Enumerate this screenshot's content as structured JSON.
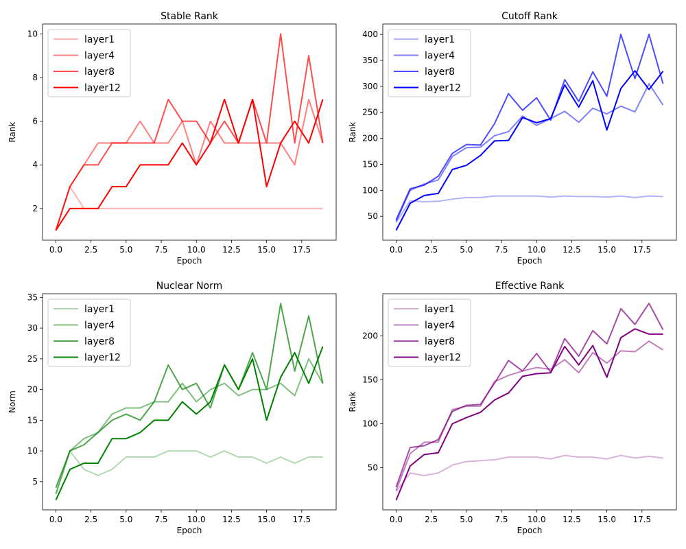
{
  "chart_data": [
    {
      "type": "line",
      "title": "Stable Rank",
      "xlabel": "Epoch",
      "ylabel": "Rank",
      "xlim": [
        -0.95,
        19.95
      ],
      "ylim": [
        0.55,
        10.45
      ],
      "xticks": [
        0.0,
        2.5,
        5.0,
        7.5,
        10.0,
        12.5,
        15.0,
        17.5
      ],
      "xtick_labels": [
        "0.0",
        "2.5",
        "5.0",
        "7.5",
        "10.0",
        "12.5",
        "15.0",
        "17.5"
      ],
      "yticks": [
        2,
        4,
        6,
        8,
        10
      ],
      "ytick_labels": [
        "2",
        "4",
        "6",
        "8",
        "10"
      ],
      "legend_position": "top-left",
      "x": [
        0,
        1,
        2,
        3,
        4,
        5,
        6,
        7,
        8,
        9,
        10,
        11,
        12,
        13,
        14,
        15,
        16,
        17,
        18,
        19
      ],
      "series": [
        {
          "name": "layer1",
          "color": "#ff0000",
          "opacity": 0.3,
          "values": [
            1,
            3,
            2,
            2,
            2,
            2,
            2,
            2,
            2,
            2,
            2,
            2,
            2,
            2,
            2,
            2,
            2,
            2,
            2,
            2
          ]
        },
        {
          "name": "layer4",
          "color": "#ff0000",
          "opacity": 0.5,
          "values": [
            1,
            3,
            4,
            5,
            5,
            5,
            6,
            5,
            5,
            6,
            4,
            6,
            5,
            5,
            5,
            5,
            5,
            4,
            7,
            5
          ]
        },
        {
          "name": "layer8",
          "color": "#ff0000",
          "opacity": 0.7,
          "values": [
            1,
            3,
            4,
            4,
            5,
            5,
            5,
            5,
            7,
            6,
            6,
            5,
            6,
            5,
            7,
            5,
            10,
            5,
            9,
            5
          ]
        },
        {
          "name": "layer12",
          "color": "#ff0000",
          "opacity": 1.0,
          "values": [
            1,
            2,
            2,
            2,
            3,
            3,
            4,
            4,
            4,
            5,
            4,
            5,
            7,
            5,
            7,
            3,
            5,
            6,
            5,
            7
          ]
        }
      ]
    },
    {
      "type": "line",
      "title": "Cutoff Rank",
      "xlabel": "Epoch",
      "ylabel": "Rank",
      "xlim": [
        -0.95,
        19.95
      ],
      "ylim": [
        4,
        420
      ],
      "xticks": [
        0.0,
        2.5,
        5.0,
        7.5,
        10.0,
        12.5,
        15.0,
        17.5
      ],
      "xtick_labels": [
        "0.0",
        "2.5",
        "5.0",
        "7.5",
        "10.0",
        "12.5",
        "15.0",
        "17.5"
      ],
      "yticks": [
        50,
        100,
        150,
        200,
        250,
        300,
        350,
        400
      ],
      "ytick_labels": [
        "50",
        "100",
        "150",
        "200",
        "250",
        "300",
        "350",
        "400"
      ],
      "legend_position": "top-left",
      "x": [
        0,
        1,
        2,
        3,
        4,
        5,
        6,
        7,
        8,
        9,
        10,
        11,
        12,
        13,
        14,
        15,
        16,
        17,
        18,
        19
      ],
      "series": [
        {
          "name": "layer1",
          "color": "#0000ff",
          "opacity": 0.3,
          "values": [
            38,
            80,
            78,
            79,
            83,
            86,
            86,
            89,
            89,
            89,
            89,
            87,
            89,
            88,
            88,
            87,
            89,
            86,
            89,
            88
          ]
        },
        {
          "name": "layer4",
          "color": "#0000ff",
          "opacity": 0.5,
          "values": [
            40,
            100,
            112,
            120,
            165,
            182,
            183,
            205,
            213,
            243,
            225,
            238,
            252,
            231,
            258,
            247,
            262,
            251,
            305,
            264
          ]
        },
        {
          "name": "layer8",
          "color": "#0000ff",
          "opacity": 0.7,
          "values": [
            43,
            103,
            110,
            127,
            171,
            188,
            187,
            228,
            286,
            254,
            278,
            235,
            313,
            271,
            328,
            281,
            400,
            315,
            400,
            305
          ]
        },
        {
          "name": "layer12",
          "color": "#0000ff",
          "opacity": 1.0,
          "values": [
            23,
            75,
            90,
            94,
            140,
            148,
            167,
            195,
            196,
            240,
            230,
            238,
            303,
            260,
            311,
            216,
            296,
            330,
            294,
            329
          ]
        }
      ]
    },
    {
      "type": "line",
      "title": "Nuclear Norm",
      "xlabel": "Epoch",
      "ylabel": "Norm",
      "xlim": [
        -0.95,
        19.95
      ],
      "ylim": [
        0.4,
        35.6
      ],
      "xticks": [
        0.0,
        2.5,
        5.0,
        7.5,
        10.0,
        12.5,
        15.0,
        17.5
      ],
      "xtick_labels": [
        "0.0",
        "2.5",
        "5.0",
        "7.5",
        "10.0",
        "12.5",
        "15.0",
        "17.5"
      ],
      "yticks": [
        5,
        10,
        15,
        20,
        25,
        30,
        35
      ],
      "ytick_labels": [
        "5",
        "10",
        "15",
        "20",
        "25",
        "30",
        "35"
      ],
      "legend_position": "top-left",
      "x": [
        0,
        1,
        2,
        3,
        4,
        5,
        6,
        7,
        8,
        9,
        10,
        11,
        12,
        13,
        14,
        15,
        16,
        17,
        18,
        19
      ],
      "series": [
        {
          "name": "layer1",
          "color": "#008000",
          "opacity": 0.3,
          "values": [
            3,
            10,
            7,
            6,
            7,
            9,
            9,
            9,
            10,
            10,
            10,
            9,
            10,
            9,
            9,
            8,
            9,
            8,
            9,
            9
          ]
        },
        {
          "name": "layer4",
          "color": "#008000",
          "opacity": 0.5,
          "values": [
            3,
            10,
            12,
            13,
            16,
            17,
            17,
            18,
            18,
            21,
            18,
            20,
            21,
            19,
            20,
            20,
            21,
            19,
            25,
            21
          ]
        },
        {
          "name": "layer8",
          "color": "#008000",
          "opacity": 0.7,
          "values": [
            4,
            10,
            11,
            13,
            15,
            16,
            15,
            18,
            24,
            20,
            21,
            17,
            24,
            20,
            26,
            20,
            34,
            23,
            32,
            21
          ]
        },
        {
          "name": "layer12",
          "color": "#008000",
          "opacity": 1.0,
          "values": [
            2,
            7,
            8,
            8,
            12,
            12,
            13,
            15,
            15,
            18,
            16,
            18,
            24,
            20,
            25,
            15,
            22,
            26,
            21,
            27
          ]
        }
      ]
    },
    {
      "type": "line",
      "title": "Effective Rank",
      "xlabel": "Epoch",
      "ylabel": "Rank",
      "xlim": [
        -0.95,
        19.95
      ],
      "ylim": [
        2,
        248
      ],
      "xticks": [
        0.0,
        2.5,
        5.0,
        7.5,
        10.0,
        12.5,
        15.0,
        17.5
      ],
      "xtick_labels": [
        "0.0",
        "2.5",
        "5.0",
        "7.5",
        "10.0",
        "12.5",
        "15.0",
        "17.5"
      ],
      "yticks": [
        50,
        100,
        150,
        200
      ],
      "ytick_labels": [
        "50",
        "100",
        "150",
        "200"
      ],
      "legend_position": "top-left",
      "x": [
        0,
        1,
        2,
        3,
        4,
        5,
        6,
        7,
        8,
        9,
        10,
        11,
        12,
        13,
        14,
        15,
        16,
        17,
        18,
        19
      ],
      "series": [
        {
          "name": "layer1",
          "color": "#800080",
          "opacity": 0.3,
          "values": [
            23,
            44,
            41,
            44,
            53,
            57,
            58,
            59,
            62,
            62,
            62,
            60,
            64,
            62,
            62,
            60,
            64,
            61,
            63,
            61
          ]
        },
        {
          "name": "layer4",
          "color": "#800080",
          "opacity": 0.5,
          "values": [
            24,
            66,
            79,
            79,
            116,
            120,
            120,
            148,
            155,
            160,
            164,
            162,
            173,
            158,
            181,
            169,
            183,
            182,
            194,
            184
          ]
        },
        {
          "name": "layer8",
          "color": "#800080",
          "opacity": 0.7,
          "values": [
            28,
            73,
            75,
            82,
            114,
            121,
            122,
            146,
            172,
            160,
            180,
            159,
            197,
            177,
            206,
            191,
            231,
            213,
            237,
            207
          ]
        },
        {
          "name": "layer12",
          "color": "#800080",
          "opacity": 1.0,
          "values": [
            13,
            52,
            65,
            67,
            100,
            107,
            113,
            127,
            135,
            154,
            157,
            158,
            188,
            167,
            189,
            153,
            198,
            208,
            202,
            202
          ]
        }
      ]
    }
  ]
}
